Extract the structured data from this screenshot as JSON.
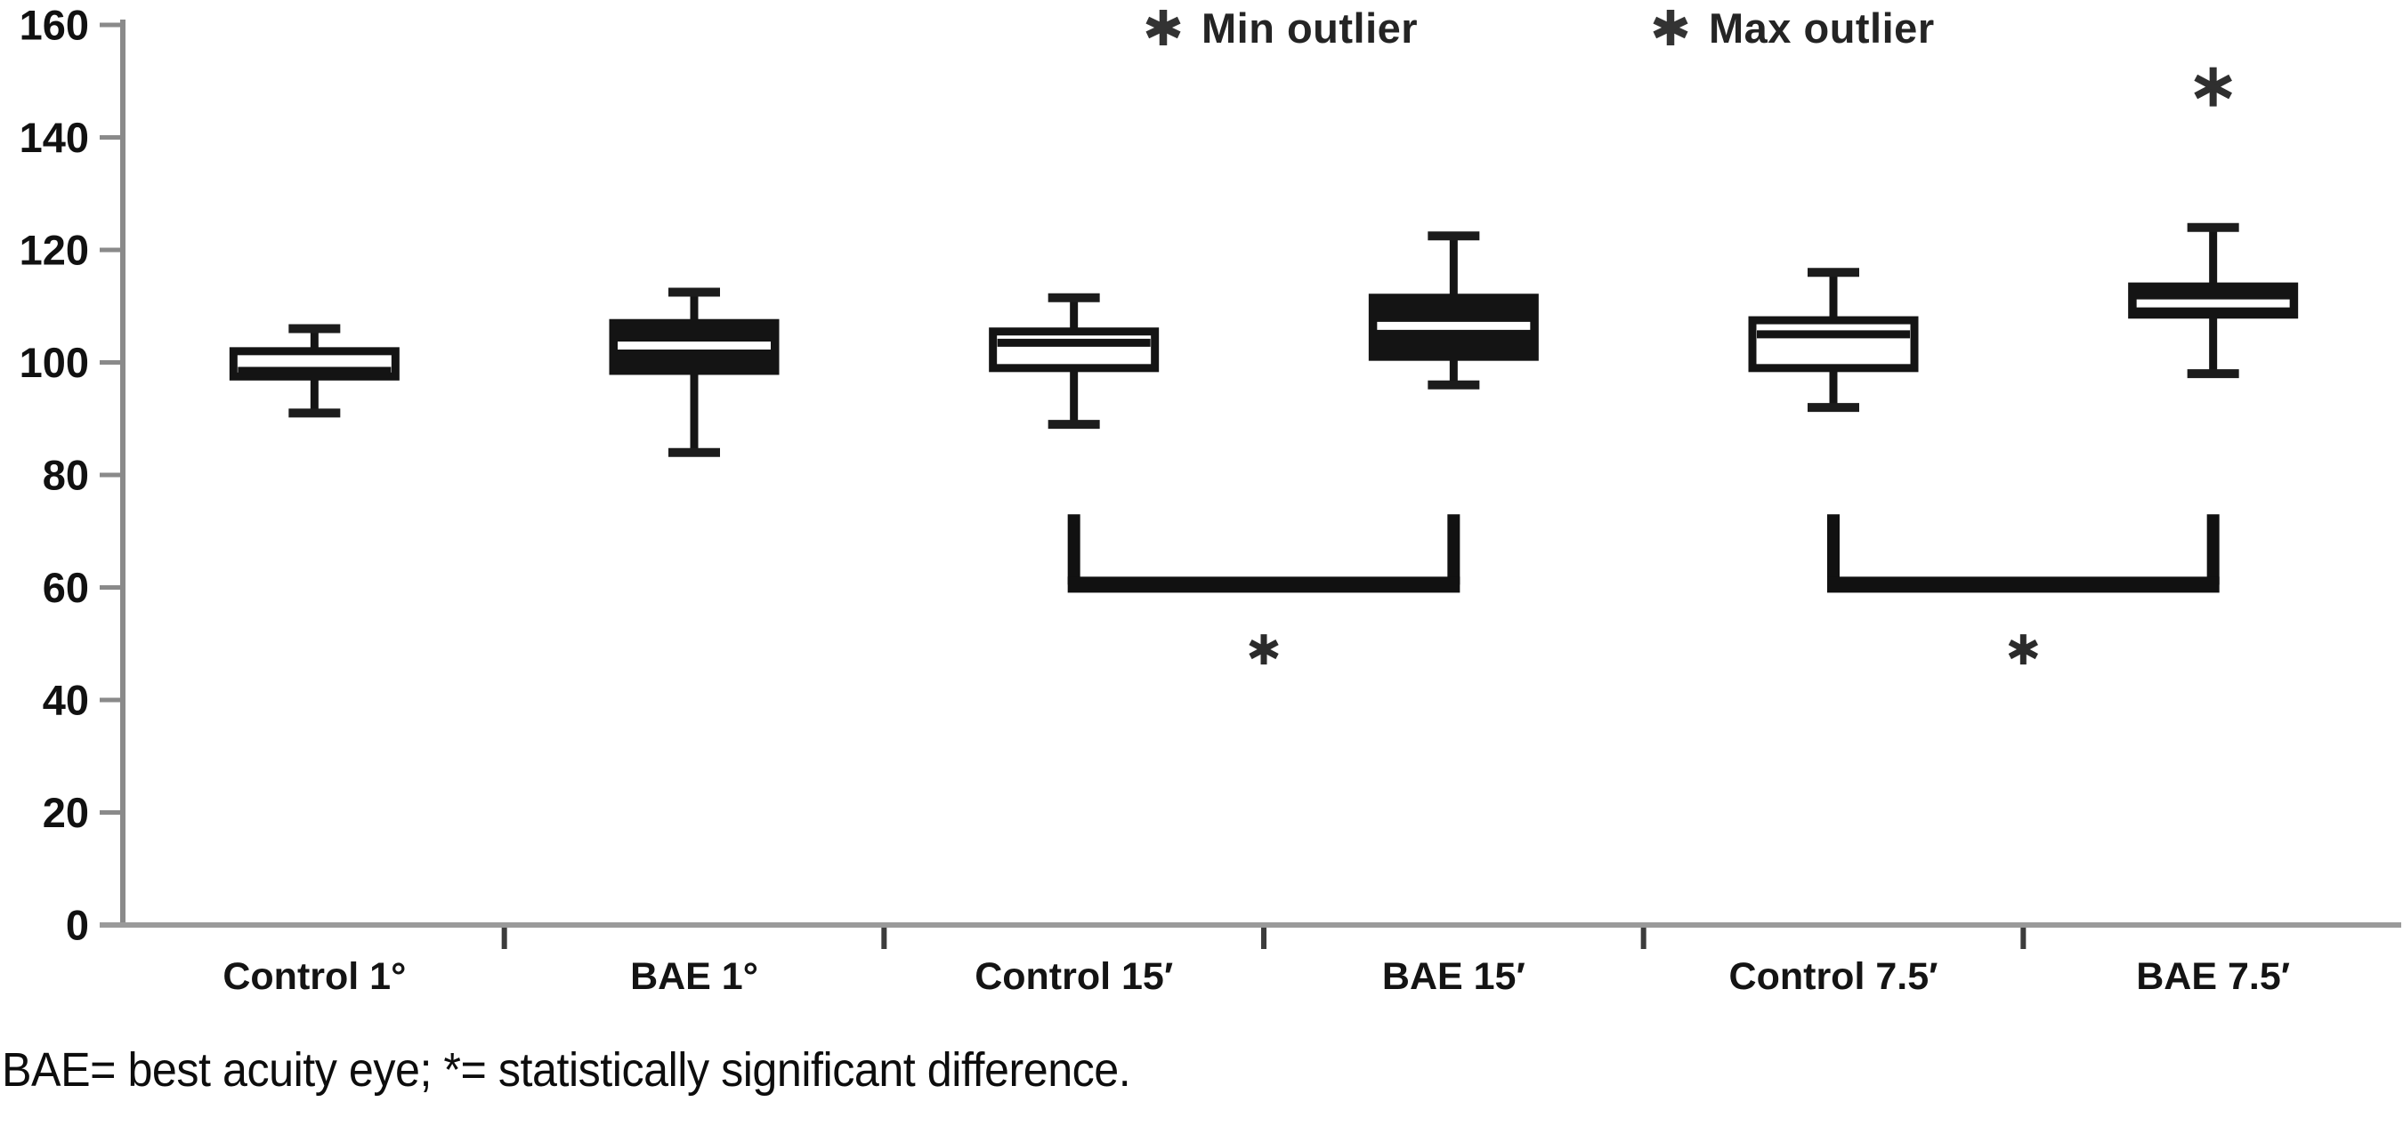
{
  "page": {
    "background": "#ffffff",
    "ink_color": "#141414",
    "axis_color": "#8a8a8a",
    "boundary_tick_color": "#3c3c3c",
    "marker_color": "#2f2f2f"
  },
  "legend": {
    "items": [
      {
        "marker": "asterisk-icon",
        "label": "Min outlier"
      },
      {
        "marker": "asterisk-icon",
        "label": "Max outlier"
      }
    ]
  },
  "caption": "BAE= best acuity eye; *= statistically significant difference.",
  "chart_data": {
    "type": "boxplot",
    "title": "",
    "xlabel": "",
    "ylabel": "",
    "ylim": [
      0,
      160
    ],
    "yticks": [
      0,
      20,
      40,
      60,
      80,
      100,
      120,
      140,
      160
    ],
    "grid": false,
    "legend_position": "top",
    "categories": [
      "Control 1°",
      "BAE 1°",
      "Control 15′",
      "BAE 15′",
      "Control 7.5′",
      "BAE 7.5′"
    ],
    "boxes": [
      {
        "category": "Control 1°",
        "fill": "white",
        "whisker_low": 91,
        "q1": 97.5,
        "median": 98.5,
        "q3": 102,
        "whisker_high": 106,
        "outliers": []
      },
      {
        "category": "BAE 1°",
        "fill": "black",
        "whisker_low": 84,
        "q1": 98.5,
        "median": 103,
        "q3": 107,
        "whisker_high": 112.5,
        "outliers": []
      },
      {
        "category": "Control 15′",
        "fill": "white",
        "whisker_low": 89,
        "q1": 99,
        "median": 103.5,
        "q3": 105.5,
        "whisker_high": 111.5,
        "outliers": []
      },
      {
        "category": "BAE 15′",
        "fill": "black",
        "whisker_low": 96,
        "q1": 101,
        "median": 106.5,
        "q3": 111.5,
        "whisker_high": 122.5,
        "outliers": []
      },
      {
        "category": "Control 7.5′",
        "fill": "white",
        "whisker_low": 92,
        "q1": 99,
        "median": 105,
        "q3": 107.5,
        "whisker_high": 116,
        "outliers": []
      },
      {
        "category": "BAE 7.5′",
        "fill": "black",
        "whisker_low": 98,
        "q1": 108.5,
        "median": 110.5,
        "q3": 113.5,
        "whisker_high": 124,
        "outliers": [
          149
        ]
      }
    ],
    "significance_brackets": [
      {
        "from": "Control 15′",
        "to": "BAE 15′",
        "arm_top_value": 73,
        "bar_value": 60.5,
        "star_value": 49,
        "label": "*"
      },
      {
        "from": "Control 7.5′",
        "to": "BAE 7.5′",
        "arm_top_value": 73,
        "bar_value": 60.5,
        "star_value": 49,
        "label": "*"
      }
    ]
  }
}
